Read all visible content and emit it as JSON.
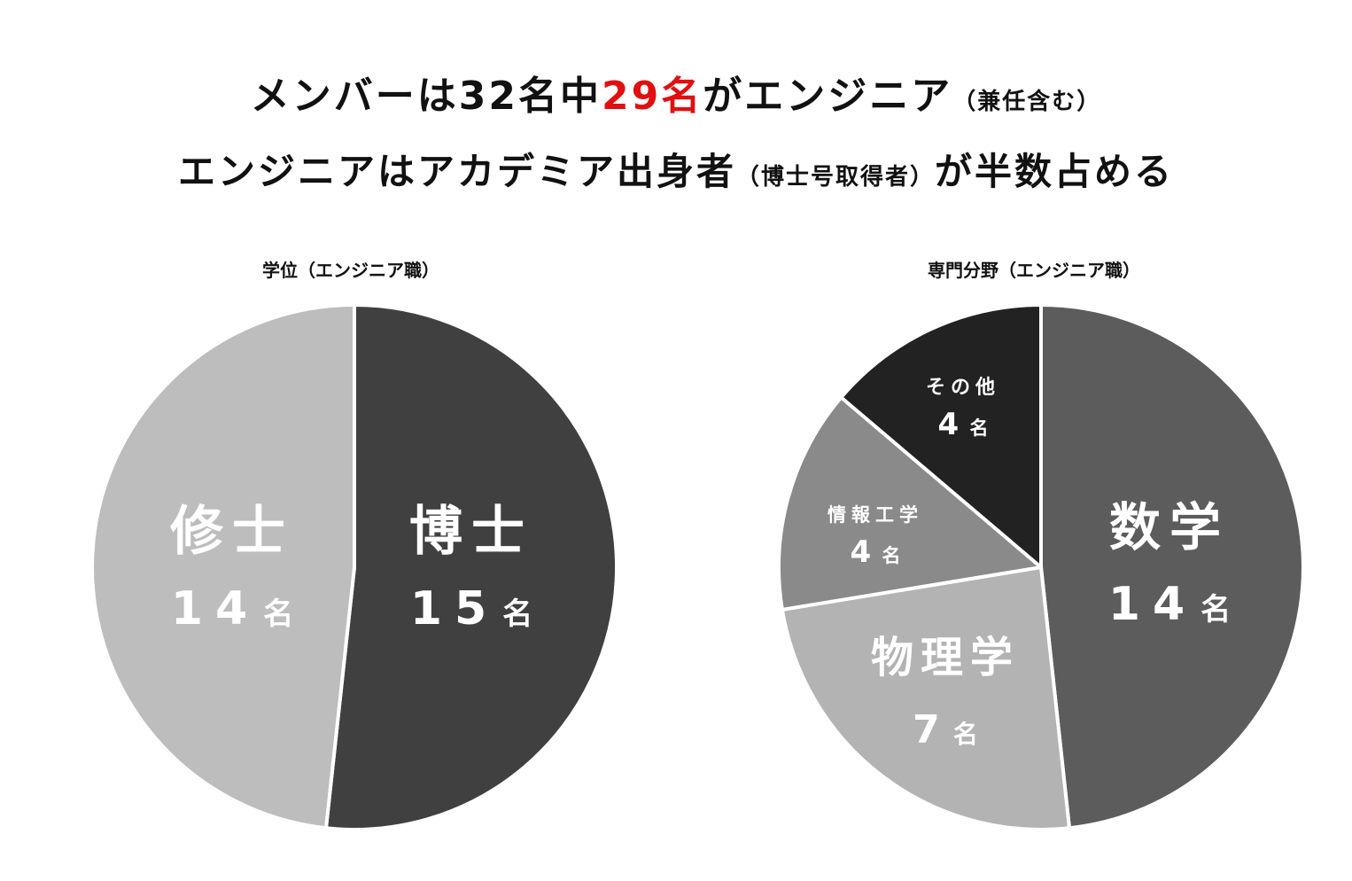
{
  "headline": {
    "line1_a": "メンバーは32名中",
    "line1_highlight": "29名",
    "line1_b": "がエンジニア",
    "line1_note": "（兼任含む）",
    "line2_a": "エンジニアはアカデミア出身者",
    "line2_note": "（博士号取得者）",
    "line2_b": "が半数占める",
    "highlight_color": "#e01010"
  },
  "chart_data": [
    {
      "type": "pie",
      "title": "学位（エンジニア職）",
      "unit": "名",
      "slices": [
        {
          "label": "博士",
          "value": 15,
          "value_text": "15",
          "color": "#404040"
        },
        {
          "label": "修士",
          "value": 14,
          "value_text": "14",
          "color": "#bdbdbd"
        }
      ]
    },
    {
      "type": "pie",
      "title": "専門分野（エンジニア職）",
      "unit": "名",
      "slices": [
        {
          "label": "数学",
          "value": 14,
          "value_text": "14",
          "color": "#5c5c5c"
        },
        {
          "label": "物理学",
          "value": 7,
          "value_text": "7",
          "color": "#b3b3b3"
        },
        {
          "label": "情報工学",
          "value": 4,
          "value_text": "4",
          "color": "#8a8a8a"
        },
        {
          "label": "その他",
          "value": 4,
          "value_text": "4",
          "color": "#222222"
        }
      ]
    }
  ]
}
